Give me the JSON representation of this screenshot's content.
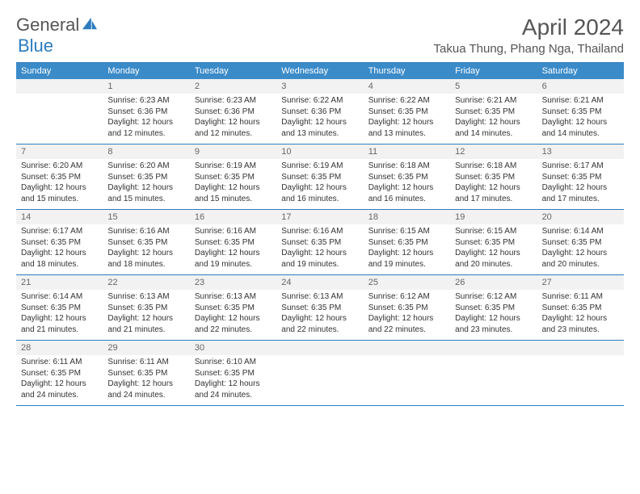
{
  "logo": {
    "text1": "General",
    "text2": "Blue",
    "shape_color": "#2b7cbf"
  },
  "title": "April 2024",
  "location": "Takua Thung, Phang Nga, Thailand",
  "colors": {
    "header_bg": "#3b8bc9",
    "border": "#2b7cbf",
    "num_bg": "#f2f2f2",
    "text": "#333333"
  },
  "day_labels": [
    "Sunday",
    "Monday",
    "Tuesday",
    "Wednesday",
    "Thursday",
    "Friday",
    "Saturday"
  ],
  "weeks": [
    [
      null,
      {
        "n": "1",
        "sr": "Sunrise: 6:23 AM",
        "ss": "Sunset: 6:36 PM",
        "dl": "Daylight: 12 hours and 12 minutes."
      },
      {
        "n": "2",
        "sr": "Sunrise: 6:23 AM",
        "ss": "Sunset: 6:36 PM",
        "dl": "Daylight: 12 hours and 12 minutes."
      },
      {
        "n": "3",
        "sr": "Sunrise: 6:22 AM",
        "ss": "Sunset: 6:36 PM",
        "dl": "Daylight: 12 hours and 13 minutes."
      },
      {
        "n": "4",
        "sr": "Sunrise: 6:22 AM",
        "ss": "Sunset: 6:35 PM",
        "dl": "Daylight: 12 hours and 13 minutes."
      },
      {
        "n": "5",
        "sr": "Sunrise: 6:21 AM",
        "ss": "Sunset: 6:35 PM",
        "dl": "Daylight: 12 hours and 14 minutes."
      },
      {
        "n": "6",
        "sr": "Sunrise: 6:21 AM",
        "ss": "Sunset: 6:35 PM",
        "dl": "Daylight: 12 hours and 14 minutes."
      }
    ],
    [
      {
        "n": "7",
        "sr": "Sunrise: 6:20 AM",
        "ss": "Sunset: 6:35 PM",
        "dl": "Daylight: 12 hours and 15 minutes."
      },
      {
        "n": "8",
        "sr": "Sunrise: 6:20 AM",
        "ss": "Sunset: 6:35 PM",
        "dl": "Daylight: 12 hours and 15 minutes."
      },
      {
        "n": "9",
        "sr": "Sunrise: 6:19 AM",
        "ss": "Sunset: 6:35 PM",
        "dl": "Daylight: 12 hours and 15 minutes."
      },
      {
        "n": "10",
        "sr": "Sunrise: 6:19 AM",
        "ss": "Sunset: 6:35 PM",
        "dl": "Daylight: 12 hours and 16 minutes."
      },
      {
        "n": "11",
        "sr": "Sunrise: 6:18 AM",
        "ss": "Sunset: 6:35 PM",
        "dl": "Daylight: 12 hours and 16 minutes."
      },
      {
        "n": "12",
        "sr": "Sunrise: 6:18 AM",
        "ss": "Sunset: 6:35 PM",
        "dl": "Daylight: 12 hours and 17 minutes."
      },
      {
        "n": "13",
        "sr": "Sunrise: 6:17 AM",
        "ss": "Sunset: 6:35 PM",
        "dl": "Daylight: 12 hours and 17 minutes."
      }
    ],
    [
      {
        "n": "14",
        "sr": "Sunrise: 6:17 AM",
        "ss": "Sunset: 6:35 PM",
        "dl": "Daylight: 12 hours and 18 minutes."
      },
      {
        "n": "15",
        "sr": "Sunrise: 6:16 AM",
        "ss": "Sunset: 6:35 PM",
        "dl": "Daylight: 12 hours and 18 minutes."
      },
      {
        "n": "16",
        "sr": "Sunrise: 6:16 AM",
        "ss": "Sunset: 6:35 PM",
        "dl": "Daylight: 12 hours and 19 minutes."
      },
      {
        "n": "17",
        "sr": "Sunrise: 6:16 AM",
        "ss": "Sunset: 6:35 PM",
        "dl": "Daylight: 12 hours and 19 minutes."
      },
      {
        "n": "18",
        "sr": "Sunrise: 6:15 AM",
        "ss": "Sunset: 6:35 PM",
        "dl": "Daylight: 12 hours and 19 minutes."
      },
      {
        "n": "19",
        "sr": "Sunrise: 6:15 AM",
        "ss": "Sunset: 6:35 PM",
        "dl": "Daylight: 12 hours and 20 minutes."
      },
      {
        "n": "20",
        "sr": "Sunrise: 6:14 AM",
        "ss": "Sunset: 6:35 PM",
        "dl": "Daylight: 12 hours and 20 minutes."
      }
    ],
    [
      {
        "n": "21",
        "sr": "Sunrise: 6:14 AM",
        "ss": "Sunset: 6:35 PM",
        "dl": "Daylight: 12 hours and 21 minutes."
      },
      {
        "n": "22",
        "sr": "Sunrise: 6:13 AM",
        "ss": "Sunset: 6:35 PM",
        "dl": "Daylight: 12 hours and 21 minutes."
      },
      {
        "n": "23",
        "sr": "Sunrise: 6:13 AM",
        "ss": "Sunset: 6:35 PM",
        "dl": "Daylight: 12 hours and 22 minutes."
      },
      {
        "n": "24",
        "sr": "Sunrise: 6:13 AM",
        "ss": "Sunset: 6:35 PM",
        "dl": "Daylight: 12 hours and 22 minutes."
      },
      {
        "n": "25",
        "sr": "Sunrise: 6:12 AM",
        "ss": "Sunset: 6:35 PM",
        "dl": "Daylight: 12 hours and 22 minutes."
      },
      {
        "n": "26",
        "sr": "Sunrise: 6:12 AM",
        "ss": "Sunset: 6:35 PM",
        "dl": "Daylight: 12 hours and 23 minutes."
      },
      {
        "n": "27",
        "sr": "Sunrise: 6:11 AM",
        "ss": "Sunset: 6:35 PM",
        "dl": "Daylight: 12 hours and 23 minutes."
      }
    ],
    [
      {
        "n": "28",
        "sr": "Sunrise: 6:11 AM",
        "ss": "Sunset: 6:35 PM",
        "dl": "Daylight: 12 hours and 24 minutes."
      },
      {
        "n": "29",
        "sr": "Sunrise: 6:11 AM",
        "ss": "Sunset: 6:35 PM",
        "dl": "Daylight: 12 hours and 24 minutes."
      },
      {
        "n": "30",
        "sr": "Sunrise: 6:10 AM",
        "ss": "Sunset: 6:35 PM",
        "dl": "Daylight: 12 hours and 24 minutes."
      },
      null,
      null,
      null,
      null
    ]
  ]
}
